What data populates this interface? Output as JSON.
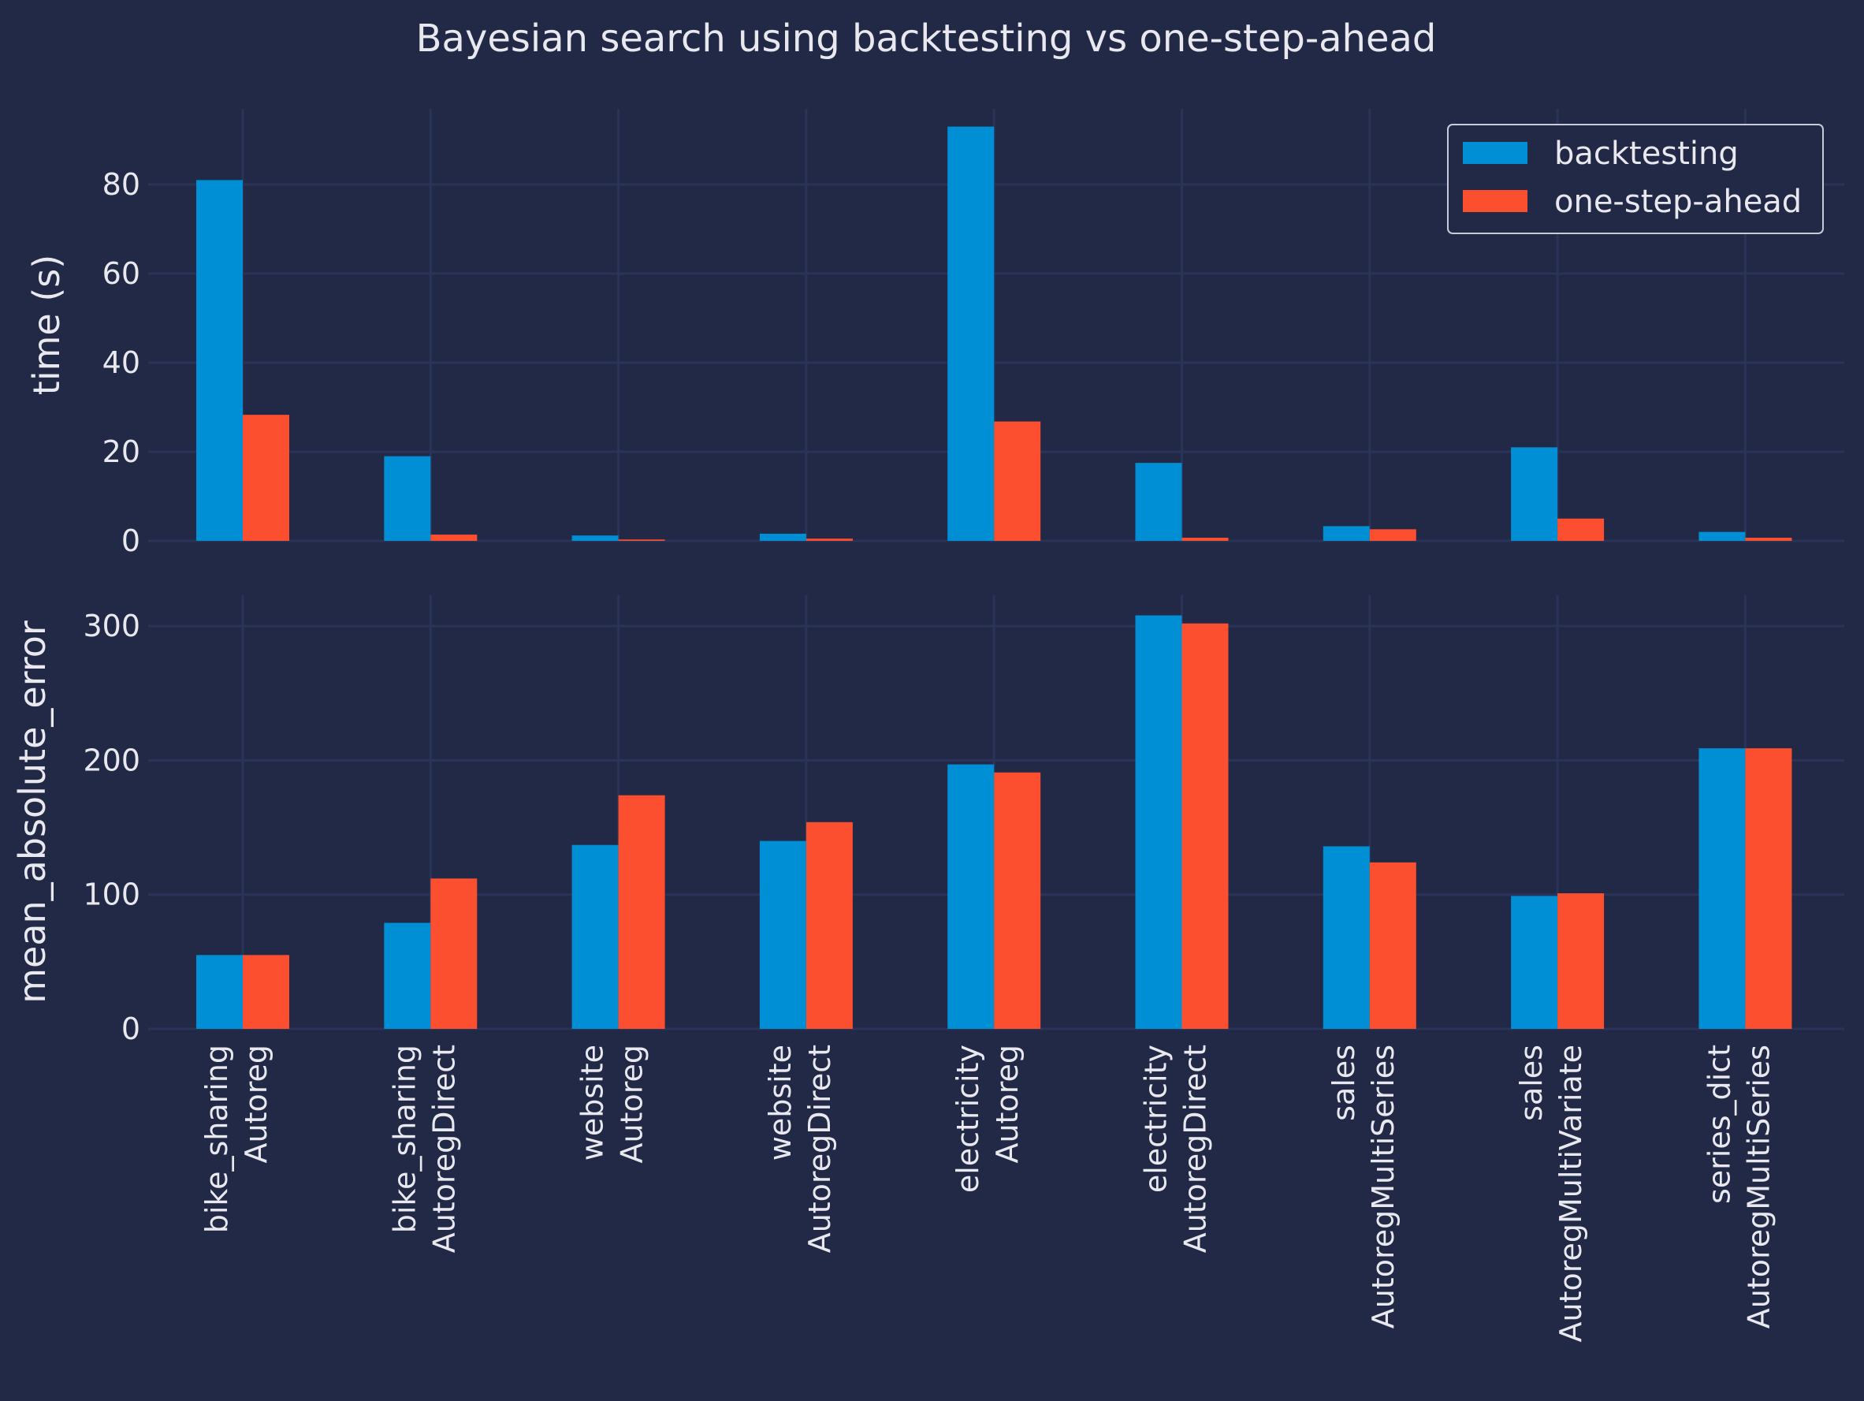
{
  "chart_title": "Bayesian search using backtesting vs one-step-ahead",
  "colors": {
    "background": "#212946",
    "grid": "#2a3459",
    "text": "#e8e8ee",
    "backtesting": "#008fd5",
    "one_step_ahead": "#fc4f30"
  },
  "chart_data": [
    {
      "type": "bar",
      "title": "Bayesian search using backtesting vs one-step-ahead",
      "ylabel": "time (s)",
      "xlabel": "",
      "ylim": [
        0,
        97
      ],
      "yticks": [
        0,
        20,
        40,
        60,
        80
      ],
      "grid": true,
      "legend": "top-right",
      "categories": [
        [
          "bike_sharing",
          "Autoreg"
        ],
        [
          "bike_sharing",
          "AutoregDirect"
        ],
        [
          "website",
          "Autoreg"
        ],
        [
          "website",
          "AutoregDirect"
        ],
        [
          "electricity",
          "Autoreg"
        ],
        [
          "electricity",
          "AutoregDirect"
        ],
        [
          "sales",
          "AutoregMultiSeries"
        ],
        [
          "sales",
          "AutoregMultiVariate"
        ],
        [
          "series_dict",
          "AutoregMultiSeries"
        ]
      ],
      "series": [
        {
          "name": "backtesting",
          "values": [
            81,
            19,
            1.2,
            1.6,
            93,
            17.5,
            3.3,
            21,
            2
          ]
        },
        {
          "name": "one-step-ahead",
          "values": [
            28.3,
            1.4,
            0.3,
            0.5,
            26.8,
            0.7,
            2.6,
            5,
            0.7
          ]
        }
      ]
    },
    {
      "type": "bar",
      "ylabel": "mean_absolute_error",
      "xlabel": "",
      "ylim": [
        0,
        323
      ],
      "yticks": [
        0,
        100,
        200,
        300
      ],
      "grid": true,
      "categories": [
        [
          "bike_sharing",
          "Autoreg"
        ],
        [
          "bike_sharing",
          "AutoregDirect"
        ],
        [
          "website",
          "Autoreg"
        ],
        [
          "website",
          "AutoregDirect"
        ],
        [
          "electricity",
          "Autoreg"
        ],
        [
          "electricity",
          "AutoregDirect"
        ],
        [
          "sales",
          "AutoregMultiSeries"
        ],
        [
          "sales",
          "AutoregMultiVariate"
        ],
        [
          "series_dict",
          "AutoregMultiSeries"
        ]
      ],
      "series": [
        {
          "name": "backtesting",
          "values": [
            55,
            79,
            137,
            140,
            197,
            308,
            136,
            99,
            209
          ]
        },
        {
          "name": "one-step-ahead",
          "values": [
            55,
            112,
            174,
            154,
            191,
            302,
            124,
            101,
            209
          ]
        }
      ]
    }
  ]
}
